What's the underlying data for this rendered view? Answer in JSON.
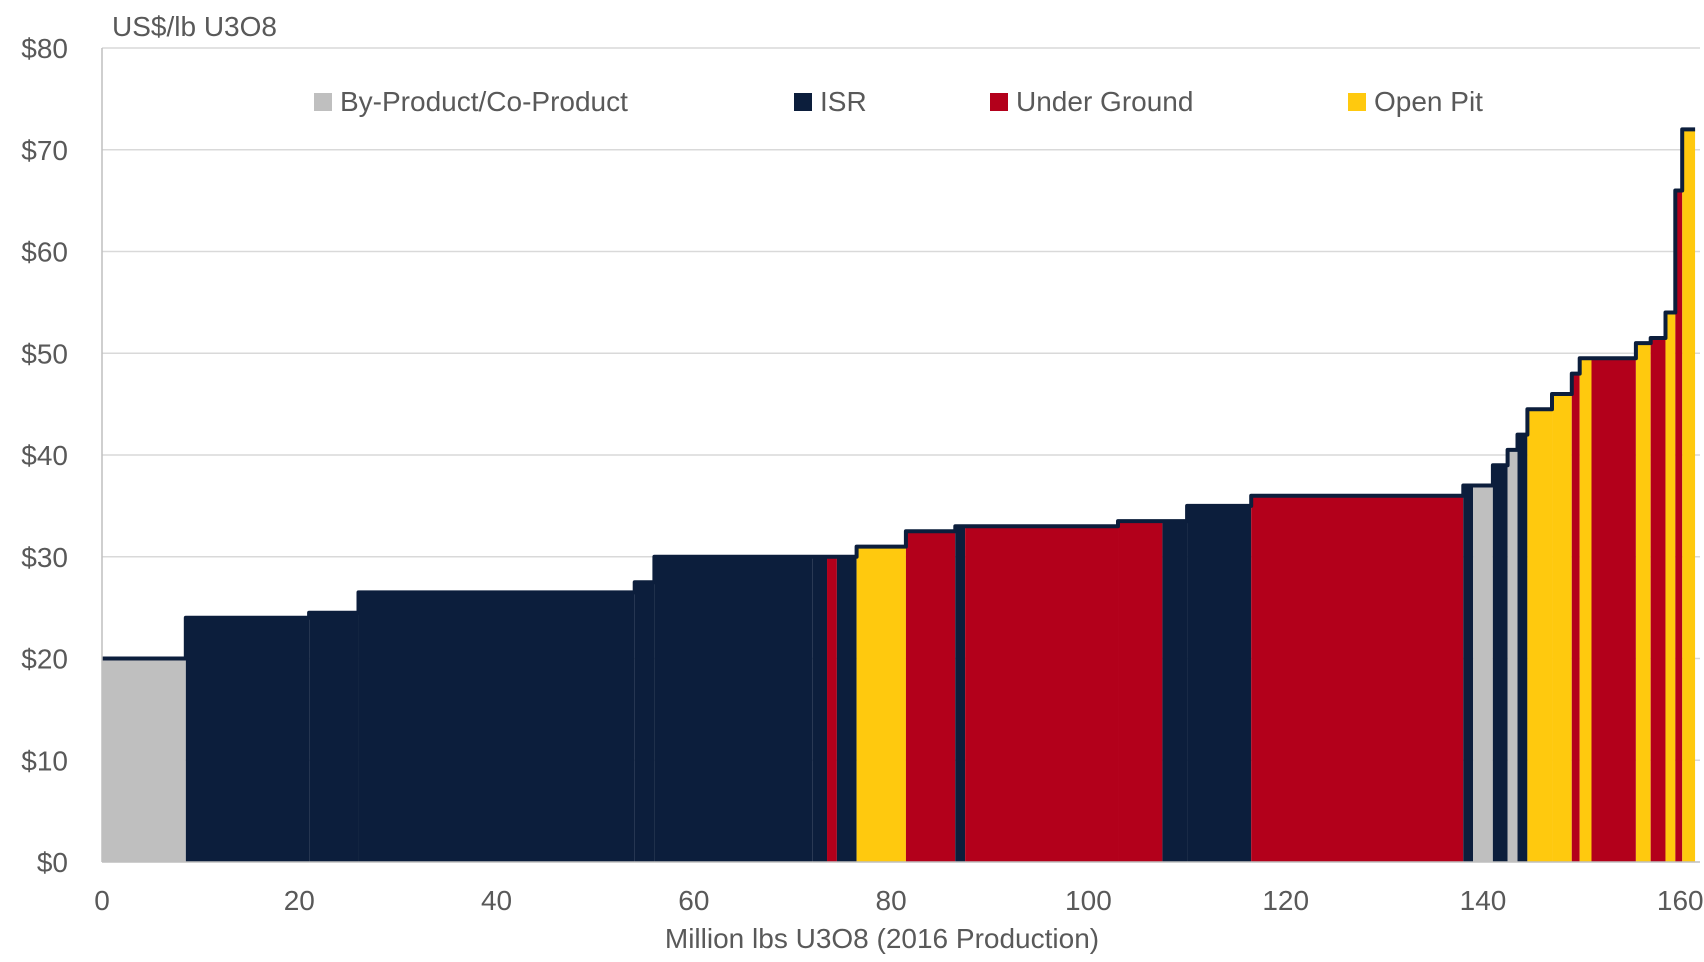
{
  "chart_data": {
    "type": "area",
    "title": "",
    "ylabel": "US$/lb U3O8",
    "xlabel": "Million lbs U3O8 (2016 Production)",
    "xlim": [
      0,
      162
    ],
    "ylim": [
      0,
      80
    ],
    "x_ticks": [
      {
        "value": 0,
        "label": "0"
      },
      {
        "value": 20,
        "label": "20"
      },
      {
        "value": 40,
        "label": "40"
      },
      {
        "value": 60,
        "label": "60"
      },
      {
        "value": 80,
        "label": "80"
      },
      {
        "value": 100,
        "label": "100"
      },
      {
        "value": 120,
        "label": "120"
      },
      {
        "value": 140,
        "label": "140"
      },
      {
        "value": 160,
        "label": "160"
      }
    ],
    "y_ticks": [
      {
        "value": 0,
        "label": "$0"
      },
      {
        "value": 10,
        "label": "$10"
      },
      {
        "value": 20,
        "label": "$20"
      },
      {
        "value": 30,
        "label": "$30"
      },
      {
        "value": 40,
        "label": "$40"
      },
      {
        "value": 50,
        "label": "$50"
      },
      {
        "value": 60,
        "label": "$60"
      },
      {
        "value": 70,
        "label": "$70"
      },
      {
        "value": 80,
        "label": "$80"
      }
    ],
    "grid": "horizontal",
    "legend_position": "top",
    "categories": [
      {
        "key": "byproduct",
        "name": "By-Product/Co-Product",
        "color": "#BFBFBF"
      },
      {
        "key": "isr",
        "name": "ISR",
        "color": "#0C1E3C"
      },
      {
        "key": "underground",
        "name": "Under Ground",
        "color": "#B3001B"
      },
      {
        "key": "openpit",
        "name": "Open Pit",
        "color": "#FFC90E"
      }
    ],
    "segments": [
      {
        "start": 0,
        "end": 8.5,
        "cost": 20,
        "category": "byproduct"
      },
      {
        "start": 8.5,
        "end": 21,
        "cost": 24,
        "category": "isr"
      },
      {
        "start": 21,
        "end": 26,
        "cost": 24.5,
        "category": "isr"
      },
      {
        "start": 26,
        "end": 54,
        "cost": 26.5,
        "category": "isr"
      },
      {
        "start": 54,
        "end": 56,
        "cost": 27.5,
        "category": "isr"
      },
      {
        "start": 56,
        "end": 72,
        "cost": 30,
        "category": "isr"
      },
      {
        "start": 72,
        "end": 73.5,
        "cost": 30,
        "category": "isr"
      },
      {
        "start": 73.5,
        "end": 74.5,
        "cost": 30,
        "category": "underground"
      },
      {
        "start": 74.5,
        "end": 76.5,
        "cost": 30,
        "category": "isr"
      },
      {
        "start": 76.5,
        "end": 81.5,
        "cost": 31,
        "category": "openpit"
      },
      {
        "start": 81.5,
        "end": 86.5,
        "cost": 32.5,
        "category": "underground"
      },
      {
        "start": 86.5,
        "end": 87.5,
        "cost": 33,
        "category": "isr"
      },
      {
        "start": 87.5,
        "end": 103,
        "cost": 33,
        "category": "underground"
      },
      {
        "start": 103,
        "end": 107.5,
        "cost": 33.5,
        "category": "underground"
      },
      {
        "start": 107.5,
        "end": 110,
        "cost": 33.5,
        "category": "isr"
      },
      {
        "start": 110,
        "end": 116.5,
        "cost": 35,
        "category": "isr"
      },
      {
        "start": 116.5,
        "end": 138,
        "cost": 36,
        "category": "underground"
      },
      {
        "start": 138,
        "end": 139,
        "cost": 37,
        "category": "isr"
      },
      {
        "start": 139,
        "end": 141,
        "cost": 37,
        "category": "byproduct"
      },
      {
        "start": 141,
        "end": 142.5,
        "cost": 39,
        "category": "isr"
      },
      {
        "start": 142.5,
        "end": 143.5,
        "cost": 40.5,
        "category": "byproduct"
      },
      {
        "start": 143.5,
        "end": 144.5,
        "cost": 42,
        "category": "isr"
      },
      {
        "start": 144.5,
        "end": 147,
        "cost": 44.5,
        "category": "openpit"
      },
      {
        "start": 147,
        "end": 149,
        "cost": 46,
        "category": "openpit"
      },
      {
        "start": 149,
        "end": 149.8,
        "cost": 48,
        "category": "underground"
      },
      {
        "start": 149.8,
        "end": 151,
        "cost": 49.5,
        "category": "openpit"
      },
      {
        "start": 151,
        "end": 155.5,
        "cost": 49.5,
        "category": "underground"
      },
      {
        "start": 155.5,
        "end": 157,
        "cost": 51,
        "category": "openpit"
      },
      {
        "start": 157,
        "end": 158.5,
        "cost": 51.5,
        "category": "underground"
      },
      {
        "start": 158.5,
        "end": 159.5,
        "cost": 54,
        "category": "openpit"
      },
      {
        "start": 159.5,
        "end": 160.2,
        "cost": 66,
        "category": "underground"
      },
      {
        "start": 160.2,
        "end": 161.5,
        "cost": 72,
        "category": "openpit"
      }
    ]
  }
}
